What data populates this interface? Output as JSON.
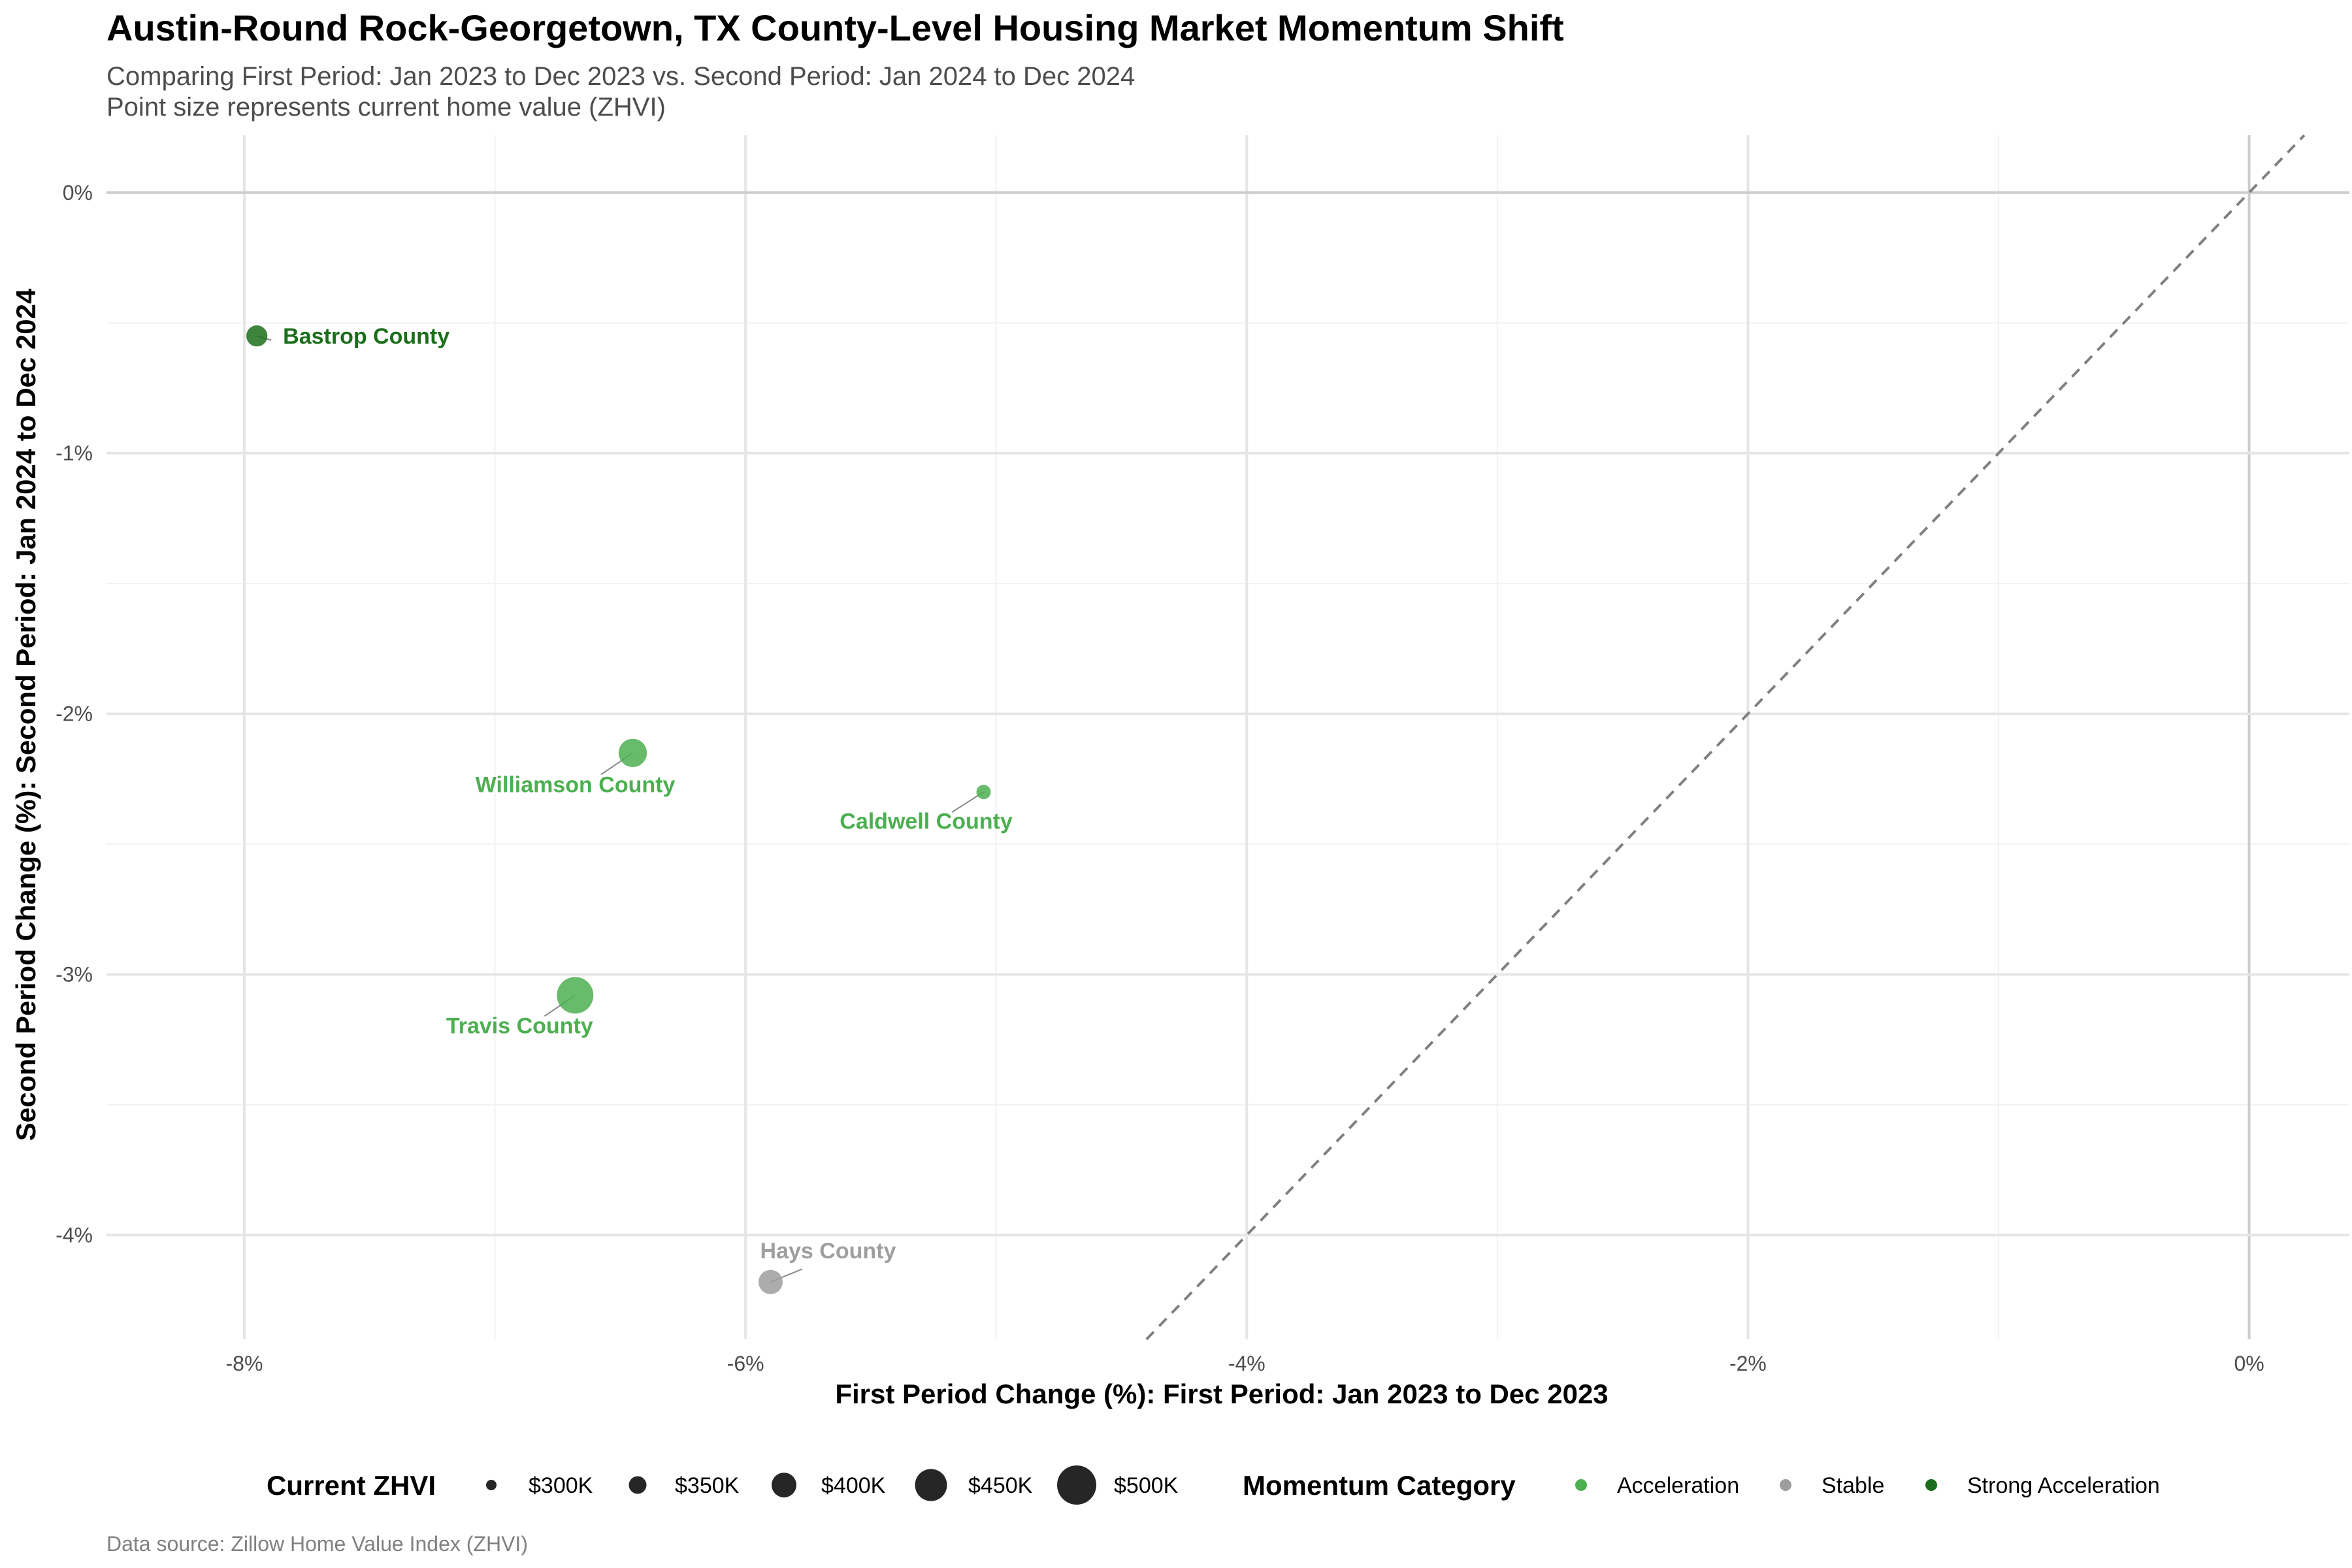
{
  "chart_data": {
    "type": "scatter",
    "title": "Austin-Round Rock-Georgetown, TX County-Level Housing Market Momentum Shift",
    "subtitle_lines": [
      "Comparing First Period: Jan 2023 to Dec 2023 vs. Second Period: Jan 2024 to Dec 2024",
      "Point size represents current home value (ZHVI)"
    ],
    "xlabel": "First Period Change (%): First Period: Jan 2023 to Dec 2023",
    "ylabel": "Second Period Change (%): Second Period: Jan 2024 to Dec 2024",
    "caption": "Data source: Zillow Home Value Index (ZHVI)",
    "xlim": [
      -8.55,
      0.4
    ],
    "ylim": [
      -4.4,
      0.22
    ],
    "x_ticks": [
      {
        "value": -8,
        "label": "-8%"
      },
      {
        "value": -6,
        "label": "-6%"
      },
      {
        "value": -4,
        "label": "-4%"
      },
      {
        "value": -2,
        "label": "-2%"
      },
      {
        "value": 0,
        "label": "0%"
      }
    ],
    "y_ticks": [
      {
        "value": 0,
        "label": "0%"
      },
      {
        "value": -1,
        "label": "-1%"
      },
      {
        "value": -2,
        "label": "-2%"
      },
      {
        "value": -3,
        "label": "-3%"
      },
      {
        "value": -4,
        "label": "-4%"
      }
    ],
    "grid": true,
    "reference_line": "y = x",
    "points": [
      {
        "name": "Bastrop County",
        "x": -7.95,
        "y": -0.55,
        "zhvi": 350000,
        "category": "Strong Acceleration"
      },
      {
        "name": "Williamson County",
        "x": -6.45,
        "y": -2.15,
        "zhvi": 420000,
        "category": "Acceleration"
      },
      {
        "name": "Caldwell County",
        "x": -5.05,
        "y": -2.3,
        "zhvi": 285000,
        "category": "Acceleration"
      },
      {
        "name": "Travis County",
        "x": -6.68,
        "y": -3.08,
        "zhvi": 500000,
        "category": "Acceleration"
      },
      {
        "name": "Hays County",
        "x": -5.9,
        "y": -4.18,
        "zhvi": 380000,
        "category": "Stable"
      }
    ],
    "legend": {
      "placement": "bottom",
      "size_title": "Current ZHVI",
      "size_entries": [
        {
          "label": "$300K",
          "value": 300000
        },
        {
          "label": "$350K",
          "value": 350000
        },
        {
          "label": "$400K",
          "value": 400000
        },
        {
          "label": "$450K",
          "value": 450000
        },
        {
          "label": "$500K",
          "value": 500000
        }
      ],
      "color_title": "Momentum Category",
      "color_entries": [
        {
          "label": "Acceleration",
          "color": "#4caf50"
        },
        {
          "label": "Stable",
          "color": "#9e9e9e"
        },
        {
          "label": "Strong Acceleration",
          "color": "#1b6e1b"
        }
      ]
    },
    "colors": {
      "Acceleration": "#4caf50",
      "Stable": "#9e9e9e",
      "Strong Acceleration": "#1b6e1b"
    }
  }
}
